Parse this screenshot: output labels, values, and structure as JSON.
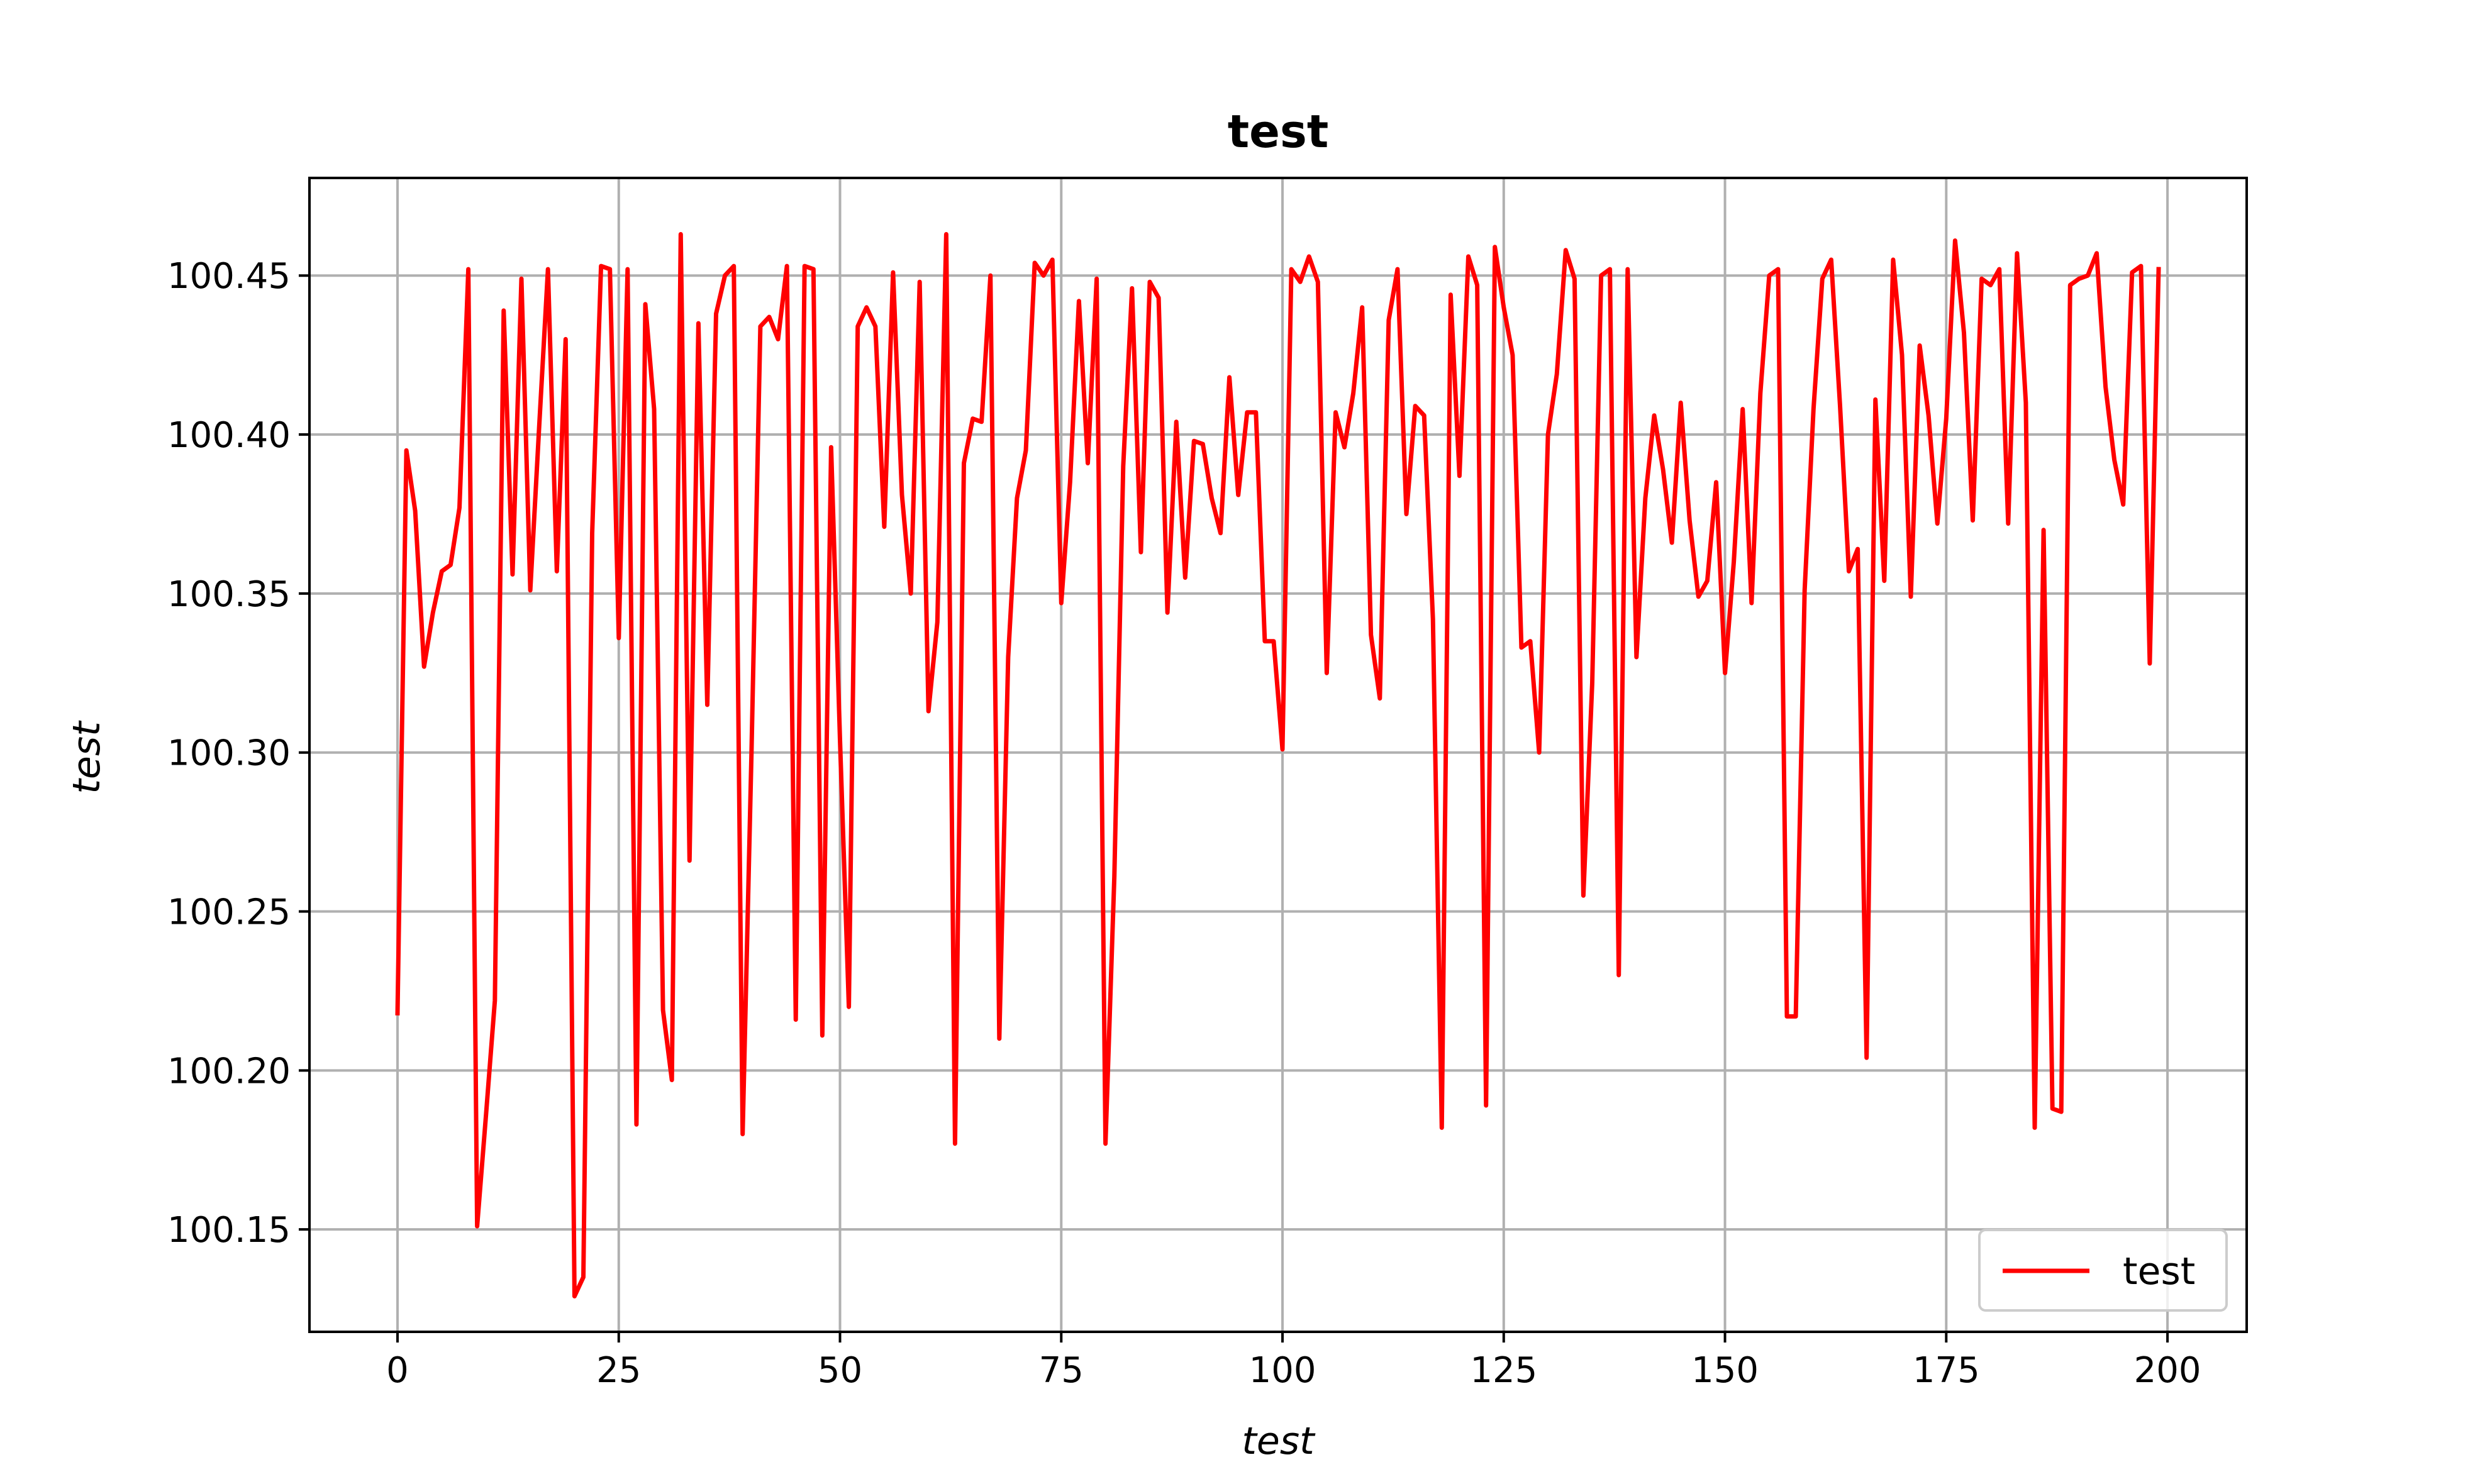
{
  "chart_data": {
    "type": "line",
    "title": "test",
    "xlabel": "test",
    "ylabel": "test",
    "xlim": [
      -9.95,
      208.95
    ],
    "ylim": [
      100.1178,
      100.4807
    ],
    "xticks": [
      0,
      25,
      50,
      75,
      100,
      125,
      150,
      175,
      200
    ],
    "yticks": [
      100.15,
      100.2,
      100.25,
      100.3,
      100.35,
      100.4,
      100.45
    ],
    "xtick_labels": [
      "0",
      "25",
      "50",
      "75",
      "100",
      "125",
      "150",
      "175",
      "200"
    ],
    "ytick_labels": [
      "100.15",
      "100.20",
      "100.25",
      "100.30",
      "100.35",
      "100.40",
      "100.45"
    ],
    "grid": true,
    "legend_position": "lower-right",
    "series": [
      {
        "name": "test",
        "color": "#ff0000",
        "x_start": 0,
        "x_step": 1,
        "values": [
          100.218,
          100.395,
          100.376,
          100.327,
          100.344,
          100.357,
          100.359,
          100.377,
          100.452,
          100.151,
          100.186,
          100.222,
          100.439,
          100.356,
          100.449,
          100.351,
          100.402,
          100.452,
          100.357,
          100.43,
          100.129,
          100.135,
          100.369,
          100.453,
          100.452,
          100.336,
          100.452,
          100.183,
          100.441,
          100.408,
          100.219,
          100.197,
          100.463,
          100.266,
          100.435,
          100.315,
          100.438,
          100.45,
          100.453,
          100.18,
          100.3,
          100.434,
          100.437,
          100.43,
          100.453,
          100.216,
          100.453,
          100.452,
          100.211,
          100.396,
          100.304,
          100.22,
          100.434,
          100.44,
          100.434,
          100.371,
          100.451,
          100.381,
          100.35,
          100.448,
          100.313,
          100.341,
          100.463,
          100.177,
          100.391,
          100.405,
          100.404,
          100.45,
          100.21,
          100.33,
          100.38,
          100.395,
          100.454,
          100.45,
          100.455,
          100.347,
          100.385,
          100.442,
          100.391,
          100.449,
          100.177,
          100.261,
          100.39,
          100.446,
          100.363,
          100.448,
          100.443,
          100.344,
          100.404,
          100.355,
          100.398,
          100.397,
          100.38,
          100.369,
          100.418,
          100.381,
          100.407,
          100.407,
          100.335,
          100.335,
          100.301,
          100.452,
          100.448,
          100.456,
          100.448,
          100.325,
          100.407,
          100.396,
          100.413,
          100.44,
          100.337,
          100.317,
          100.436,
          100.452,
          100.375,
          100.409,
          100.406,
          100.342,
          100.182,
          100.444,
          100.387,
          100.456,
          100.447,
          100.189,
          100.459,
          100.44,
          100.425,
          100.333,
          100.335,
          100.3,
          100.4,
          100.419,
          100.458,
          100.449,
          100.255,
          100.322,
          100.45,
          100.452,
          100.23,
          100.452,
          100.33,
          100.38,
          100.406,
          100.389,
          100.366,
          100.41,
          100.373,
          100.349,
          100.354,
          100.385,
          100.325,
          100.36,
          100.408,
          100.347,
          100.413,
          100.45,
          100.452,
          100.217,
          100.217,
          100.351,
          100.408,
          100.449,
          100.455,
          100.409,
          100.357,
          100.364,
          100.204,
          100.411,
          100.354,
          100.455,
          100.425,
          100.349,
          100.428,
          100.406,
          100.372,
          100.405,
          100.461,
          100.432,
          100.373,
          100.449,
          100.447,
          100.452,
          100.372,
          100.457,
          100.41,
          100.182,
          100.37,
          100.188,
          100.187,
          100.447,
          100.449,
          100.45,
          100.457,
          100.415,
          100.392,
          100.378,
          100.451,
          100.453,
          100.328,
          100.452
        ]
      }
    ]
  }
}
